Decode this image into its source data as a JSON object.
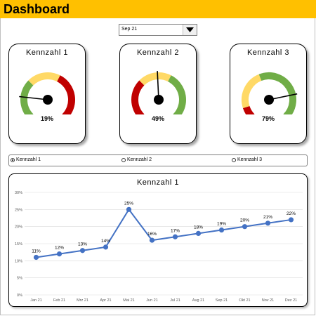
{
  "header": {
    "title": "Dashboard",
    "bg": "#ffc000"
  },
  "selector": {
    "value": "Sep 21",
    "icon": "dropdown-arrow-icon"
  },
  "gauges": [
    {
      "title": "Kennzahl  1",
      "value": 19,
      "label": "19%"
    },
    {
      "title": "Kennzahl  2",
      "value": 49,
      "label": "49%"
    },
    {
      "title": "Kennzahl  3",
      "value": 79,
      "label": "79%"
    }
  ],
  "gauge_colors": {
    "red": "#c00000",
    "yellow": "#ffd966",
    "green": "#70ad47"
  },
  "options": [
    {
      "label": "Kennzahl 1",
      "selected": true
    },
    {
      "label": "Kennzahl 2",
      "selected": false
    },
    {
      "label": "Kennzahl 3",
      "selected": false
    }
  ],
  "chart_data": {
    "type": "line",
    "title": "Kennzahl  1",
    "categories": [
      "Jan 21",
      "Feb 21",
      "Mrz 21",
      "Apr 21",
      "Mai 21",
      "Jun 21",
      "Jul 21",
      "Aug 21",
      "Sep 21",
      "Okt 21",
      "Nov 21",
      "Dez 21"
    ],
    "values": [
      11,
      12,
      13,
      14,
      25,
      16,
      17,
      18,
      19,
      20,
      21,
      22
    ],
    "data_labels": [
      "11%",
      "12%",
      "13%",
      "14%",
      "25%",
      "16%",
      "17%",
      "18%",
      "19%",
      "20%",
      "21%",
      "22%"
    ],
    "yticks": [
      "0%",
      "5%",
      "10%",
      "15%",
      "20%",
      "25%",
      "30%"
    ],
    "ylim": [
      0,
      30
    ],
    "grid": true,
    "color": "#4472c4"
  }
}
